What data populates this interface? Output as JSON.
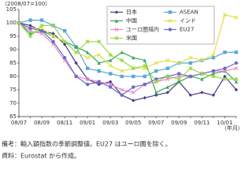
{
  "chart_data": {
    "type": "line",
    "y_label": "（2008/07=100）",
    "x_label": "（年月）",
    "categories": [
      "08/07",
      null,
      "08/09",
      null,
      "08/11",
      null,
      "09/01",
      null,
      "09/03",
      null,
      "09/05",
      null,
      "09/07",
      null,
      "09/09",
      null,
      "09/11",
      null,
      "10/01",
      null
    ],
    "series": [
      {
        "name": "日本",
        "color": "#4b3a8c",
        "marker": "diamond",
        "values": [
          100,
          99,
          97,
          96,
          92,
          85,
          79,
          77,
          78,
          73,
          71,
          72,
          73,
          74,
          78,
          73,
          74,
          73,
          80,
          75
        ]
      },
      {
        "name": "ASEAN",
        "color": "#5aa9d6",
        "marker": "square",
        "values": [
          100,
          101,
          101,
          99,
          97,
          91,
          83,
          82,
          81,
          80,
          80,
          80,
          82,
          83,
          85,
          85,
          86,
          87,
          89,
          89
        ]
      },
      {
        "name": "中国",
        "color": "#3aa65a",
        "marker": "triangle",
        "values": [
          100,
          96,
          97,
          95,
          93,
          91,
          89,
          85,
          86,
          89,
          87,
          86,
          74,
          76,
          78,
          80,
          79,
          81,
          82,
          78
        ]
      },
      {
        "name": "インド",
        "color": "#e0e040",
        "marker": "cross",
        "values": [
          100,
          98,
          98,
          95,
          93,
          89,
          87,
          88,
          84,
          82,
          83,
          83,
          85,
          86,
          85,
          87,
          86,
          88,
          103,
          102
        ]
      },
      {
        "name": "ユーロ圏域内",
        "color": "#e88ac8",
        "marker": "cross",
        "values": [
          100,
          97,
          96,
          92,
          86,
          80,
          79,
          78,
          77,
          75,
          74,
          77,
          78,
          79,
          80,
          80,
          81,
          82,
          82,
          83
        ]
      },
      {
        "name": "EU27",
        "color": "#6b6bc8",
        "marker": "circle",
        "values": [
          100,
          98,
          97,
          93,
          87,
          80,
          77,
          78,
          76,
          73,
          76,
          77,
          79,
          80,
          81,
          80,
          81,
          82,
          83,
          85
        ]
      },
      {
        "name": "米国",
        "color": "#9ad84a",
        "marker": "star",
        "values": [
          100,
          95,
          99,
          99,
          93,
          89,
          93,
          93,
          88,
          86,
          83,
          84,
          78,
          80,
          79,
          83,
          81,
          80,
          79,
          79
        ]
      }
    ],
    "ylim": [
      65,
      105
    ],
    "yticks": [
      65,
      70,
      75,
      80,
      85,
      90,
      95,
      100,
      105
    ],
    "grid": false,
    "legend": "top",
    "notes": [
      "備考：輸入額指数の季節調整値。EU27 はユーロ圏を除く。",
      "資料：Eurostat から作成。"
    ]
  }
}
